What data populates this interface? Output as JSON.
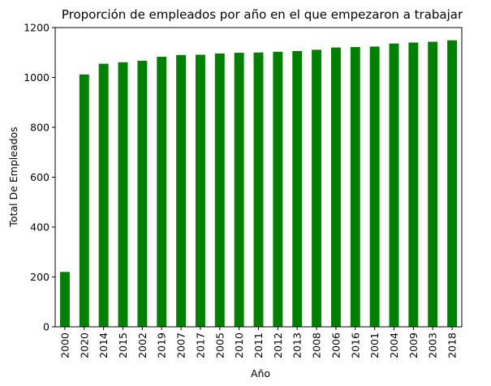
{
  "chart_data": {
    "type": "bar",
    "title": "Proporción de empleados por año en el que empezaron a trabajar",
    "xlabel": "Año",
    "ylabel": "Total De Empleados",
    "categories": [
      "2000",
      "2020",
      "2014",
      "2015",
      "2002",
      "2019",
      "2007",
      "2017",
      "2005",
      "2010",
      "2011",
      "2012",
      "2013",
      "2008",
      "2006",
      "2016",
      "2001",
      "2004",
      "2009",
      "2003",
      "2018"
    ],
    "values": [
      220,
      1012,
      1055,
      1061,
      1067,
      1083,
      1090,
      1091,
      1096,
      1099,
      1100,
      1103,
      1106,
      1111,
      1120,
      1122,
      1124,
      1136,
      1140,
      1143,
      1149
    ],
    "ylim": [
      0,
      1200
    ],
    "yticks": [
      0,
      200,
      400,
      600,
      800,
      1000,
      1200
    ],
    "bar_color": "#008000",
    "grid": false,
    "legend": "none"
  }
}
